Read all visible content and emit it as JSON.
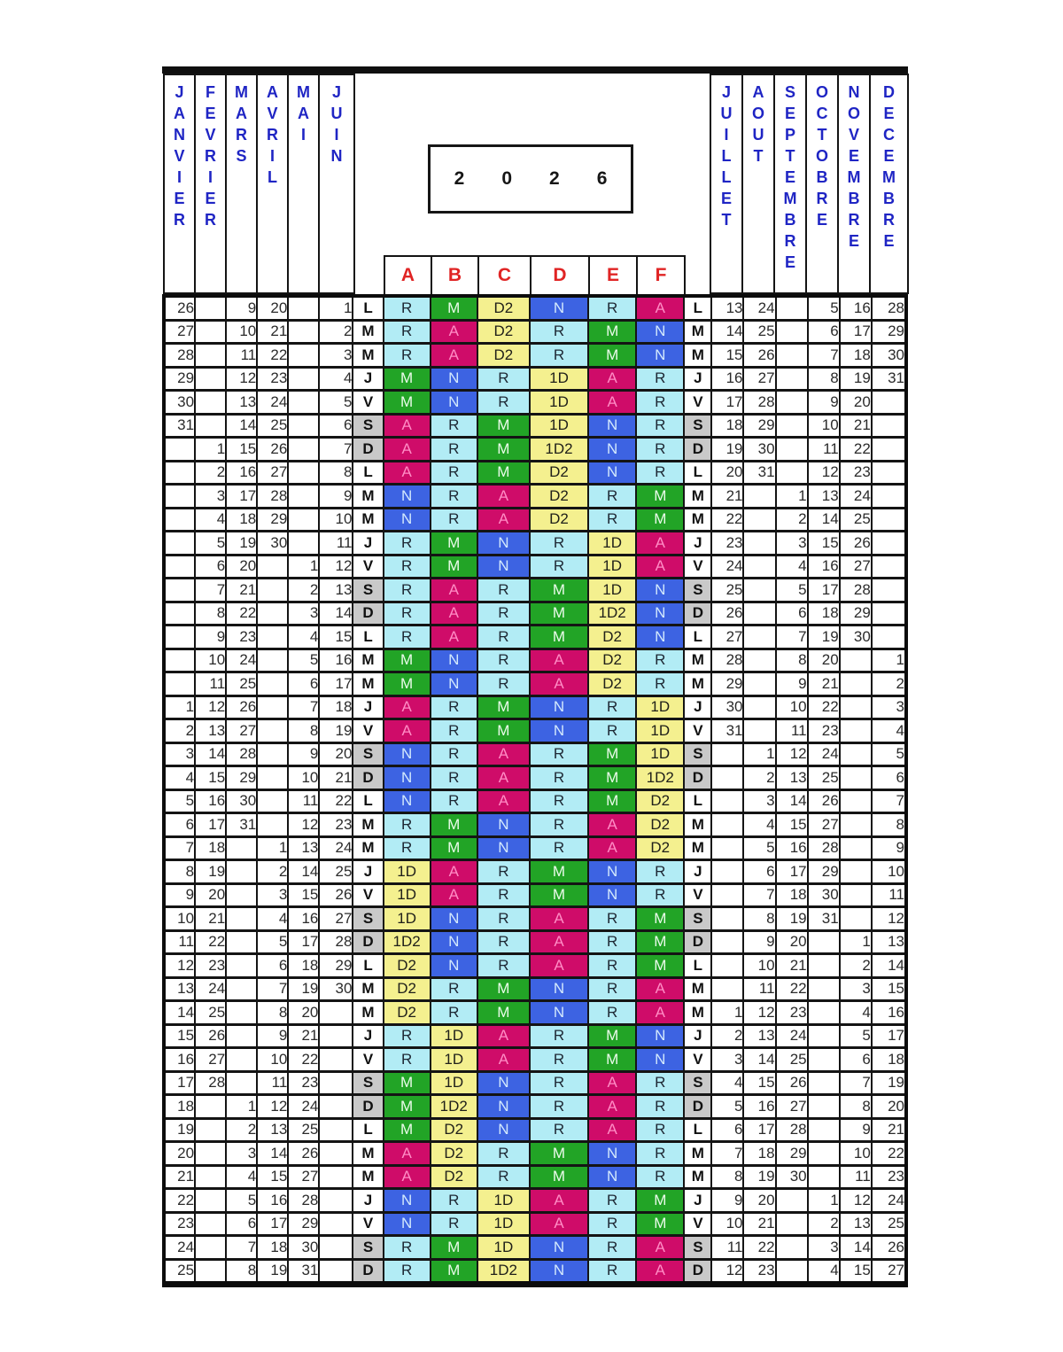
{
  "header": {
    "year": "2026",
    "year_digits": [
      "2",
      "0",
      "2",
      "6"
    ],
    "months_left": [
      "JANVIER",
      "FEVRIER",
      "MARS",
      "AVRIL",
      "MAI",
      "JUIN"
    ],
    "months_right": [
      "JUILLET",
      "AOUT",
      "SEPTEMBRE",
      "OCTOBRE",
      "NOVEMBRE",
      "DECEMBRE"
    ],
    "team_columns": [
      "A",
      "B",
      "C",
      "D",
      "E",
      "F"
    ]
  },
  "colors": {
    "border": "#141414",
    "month_text": "#1f25c4",
    "team_text": "#e02424",
    "year_text": "#161616",
    "number_text": "#2b2b2b",
    "day_text": "#111111",
    "weekend_bg": "#c9c9c9",
    "codes": {
      "R": {
        "bg": "#b2ecf5",
        "text": "#1d2733"
      },
      "M": {
        "bg": "#22a426",
        "text": "#eafbea"
      },
      "A": {
        "bg": "#cf0c69",
        "text": "#ff8cc5"
      },
      "N": {
        "bg": "#3d63e2",
        "text": "#d3e9fd"
      },
      "D2": {
        "bg": "#f4f08f",
        "text": "#20201a"
      },
      "1D": {
        "bg": "#f4f08f",
        "text": "#20201a"
      },
      "1D2": {
        "bg": "#f4f08f",
        "text": "#20201a"
      }
    }
  },
  "grid": {
    "rows": [
      {
        "left": [
          "26",
          "",
          "9",
          "20",
          "",
          "1"
        ],
        "day": "L",
        "shifts": [
          "R",
          "M",
          "D2",
          "N",
          "R",
          "A"
        ],
        "right": [
          "13",
          "24",
          "",
          "5",
          "16",
          "28"
        ]
      },
      {
        "left": [
          "27",
          "",
          "10",
          "21",
          "",
          "2"
        ],
        "day": "M",
        "shifts": [
          "R",
          "A",
          "D2",
          "R",
          "M",
          "N"
        ],
        "right": [
          "14",
          "25",
          "",
          "6",
          "17",
          "29"
        ]
      },
      {
        "left": [
          "28",
          "",
          "11",
          "22",
          "",
          "3"
        ],
        "day": "M",
        "shifts": [
          "R",
          "A",
          "D2",
          "R",
          "M",
          "N"
        ],
        "right": [
          "15",
          "26",
          "",
          "7",
          "18",
          "30"
        ]
      },
      {
        "left": [
          "29",
          "",
          "12",
          "23",
          "",
          "4"
        ],
        "day": "J",
        "shifts": [
          "M",
          "N",
          "R",
          "1D",
          "A",
          "R"
        ],
        "right": [
          "16",
          "27",
          "",
          "8",
          "19",
          "31"
        ]
      },
      {
        "left": [
          "30",
          "",
          "13",
          "24",
          "",
          "5"
        ],
        "day": "V",
        "shifts": [
          "M",
          "N",
          "R",
          "1D",
          "A",
          "R"
        ],
        "right": [
          "17",
          "28",
          "",
          "9",
          "20",
          ""
        ]
      },
      {
        "left": [
          "31",
          "",
          "14",
          "25",
          "",
          "6"
        ],
        "day": "S",
        "shifts": [
          "A",
          "R",
          "M",
          "1D",
          "N",
          "R"
        ],
        "right": [
          "18",
          "29",
          "",
          "10",
          "21",
          ""
        ]
      },
      {
        "left": [
          "",
          "1",
          "15",
          "26",
          "",
          "7"
        ],
        "day": "D",
        "shifts": [
          "A",
          "R",
          "M",
          "1D2",
          "N",
          "R"
        ],
        "right": [
          "19",
          "30",
          "",
          "11",
          "22",
          ""
        ]
      },
      {
        "left": [
          "",
          "2",
          "16",
          "27",
          "",
          "8"
        ],
        "day": "L",
        "shifts": [
          "A",
          "R",
          "M",
          "D2",
          "N",
          "R"
        ],
        "right": [
          "20",
          "31",
          "",
          "12",
          "23",
          ""
        ]
      },
      {
        "left": [
          "",
          "3",
          "17",
          "28",
          "",
          "9"
        ],
        "day": "M",
        "shifts": [
          "N",
          "R",
          "A",
          "D2",
          "R",
          "M"
        ],
        "right": [
          "21",
          "",
          "1",
          "13",
          "24",
          ""
        ]
      },
      {
        "left": [
          "",
          "4",
          "18",
          "29",
          "",
          "10"
        ],
        "day": "M",
        "shifts": [
          "N",
          "R",
          "A",
          "D2",
          "R",
          "M"
        ],
        "right": [
          "22",
          "",
          "2",
          "14",
          "25",
          ""
        ]
      },
      {
        "left": [
          "",
          "5",
          "19",
          "30",
          "",
          "11"
        ],
        "day": "J",
        "shifts": [
          "R",
          "M",
          "N",
          "R",
          "1D",
          "A"
        ],
        "right": [
          "23",
          "",
          "3",
          "15",
          "26",
          ""
        ]
      },
      {
        "left": [
          "",
          "6",
          "20",
          "",
          "1",
          "12"
        ],
        "day": "V",
        "shifts": [
          "R",
          "M",
          "N",
          "R",
          "1D",
          "A"
        ],
        "right": [
          "24",
          "",
          "4",
          "16",
          "27",
          ""
        ]
      },
      {
        "left": [
          "",
          "7",
          "21",
          "",
          "2",
          "13"
        ],
        "day": "S",
        "shifts": [
          "R",
          "A",
          "R",
          "M",
          "1D",
          "N"
        ],
        "right": [
          "25",
          "",
          "5",
          "17",
          "28",
          ""
        ]
      },
      {
        "left": [
          "",
          "8",
          "22",
          "",
          "3",
          "14"
        ],
        "day": "D",
        "shifts": [
          "R",
          "A",
          "R",
          "M",
          "1D2",
          "N"
        ],
        "right": [
          "26",
          "",
          "6",
          "18",
          "29",
          ""
        ]
      },
      {
        "left": [
          "",
          "9",
          "23",
          "",
          "4",
          "15"
        ],
        "day": "L",
        "shifts": [
          "R",
          "A",
          "R",
          "M",
          "D2",
          "N"
        ],
        "right": [
          "27",
          "",
          "7",
          "19",
          "30",
          ""
        ]
      },
      {
        "left": [
          "",
          "10",
          "24",
          "",
          "5",
          "16"
        ],
        "day": "M",
        "shifts": [
          "M",
          "N",
          "R",
          "A",
          "D2",
          "R"
        ],
        "right": [
          "28",
          "",
          "8",
          "20",
          "",
          "1"
        ]
      },
      {
        "left": [
          "",
          "11",
          "25",
          "",
          "6",
          "17"
        ],
        "day": "M",
        "shifts": [
          "M",
          "N",
          "R",
          "A",
          "D2",
          "R"
        ],
        "right": [
          "29",
          "",
          "9",
          "21",
          "",
          "2"
        ]
      },
      {
        "left": [
          "1",
          "12",
          "26",
          "",
          "7",
          "18"
        ],
        "day": "J",
        "shifts": [
          "A",
          "R",
          "M",
          "N",
          "R",
          "1D"
        ],
        "right": [
          "30",
          "",
          "10",
          "22",
          "",
          "3"
        ]
      },
      {
        "left": [
          "2",
          "13",
          "27",
          "",
          "8",
          "19"
        ],
        "day": "V",
        "shifts": [
          "A",
          "R",
          "M",
          "N",
          "R",
          "1D"
        ],
        "right": [
          "31",
          "",
          "11",
          "23",
          "",
          "4"
        ]
      },
      {
        "left": [
          "3",
          "14",
          "28",
          "",
          "9",
          "20"
        ],
        "day": "S",
        "shifts": [
          "N",
          "R",
          "A",
          "R",
          "M",
          "1D"
        ],
        "right": [
          "",
          "1",
          "12",
          "24",
          "",
          "5"
        ]
      },
      {
        "left": [
          "4",
          "15",
          "29",
          "",
          "10",
          "21"
        ],
        "day": "D",
        "shifts": [
          "N",
          "R",
          "A",
          "R",
          "M",
          "1D2"
        ],
        "right": [
          "",
          "2",
          "13",
          "25",
          "",
          "6"
        ]
      },
      {
        "left": [
          "5",
          "16",
          "30",
          "",
          "11",
          "22"
        ],
        "day": "L",
        "shifts": [
          "N",
          "R",
          "A",
          "R",
          "M",
          "D2"
        ],
        "right": [
          "",
          "3",
          "14",
          "26",
          "",
          "7"
        ]
      },
      {
        "left": [
          "6",
          "17",
          "31",
          "",
          "12",
          "23"
        ],
        "day": "M",
        "shifts": [
          "R",
          "M",
          "N",
          "R",
          "A",
          "D2"
        ],
        "right": [
          "",
          "4",
          "15",
          "27",
          "",
          "8"
        ]
      },
      {
        "left": [
          "7",
          "18",
          "",
          "1",
          "13",
          "24"
        ],
        "day": "M",
        "shifts": [
          "R",
          "M",
          "N",
          "R",
          "A",
          "D2"
        ],
        "right": [
          "",
          "5",
          "16",
          "28",
          "",
          "9"
        ]
      },
      {
        "left": [
          "8",
          "19",
          "",
          "2",
          "14",
          "25"
        ],
        "day": "J",
        "shifts": [
          "1D",
          "A",
          "R",
          "M",
          "N",
          "R"
        ],
        "right": [
          "",
          "6",
          "17",
          "29",
          "",
          "10"
        ]
      },
      {
        "left": [
          "9",
          "20",
          "",
          "3",
          "15",
          "26"
        ],
        "day": "V",
        "shifts": [
          "1D",
          "A",
          "R",
          "M",
          "N",
          "R"
        ],
        "right": [
          "",
          "7",
          "18",
          "30",
          "",
          "11"
        ]
      },
      {
        "left": [
          "10",
          "21",
          "",
          "4",
          "16",
          "27"
        ],
        "day": "S",
        "shifts": [
          "1D",
          "N",
          "R",
          "A",
          "R",
          "M"
        ],
        "right": [
          "",
          "8",
          "19",
          "31",
          "",
          "12"
        ]
      },
      {
        "left": [
          "11",
          "22",
          "",
          "5",
          "17",
          "28"
        ],
        "day": "D",
        "shifts": [
          "1D2",
          "N",
          "R",
          "A",
          "R",
          "M"
        ],
        "right": [
          "",
          "9",
          "20",
          "",
          "1",
          "13"
        ]
      },
      {
        "left": [
          "12",
          "23",
          "",
          "6",
          "18",
          "29"
        ],
        "day": "L",
        "shifts": [
          "D2",
          "N",
          "R",
          "A",
          "R",
          "M"
        ],
        "right": [
          "",
          "10",
          "21",
          "",
          "2",
          "14"
        ]
      },
      {
        "left": [
          "13",
          "24",
          "",
          "7",
          "19",
          "30"
        ],
        "day": "M",
        "shifts": [
          "D2",
          "R",
          "M",
          "N",
          "R",
          "A"
        ],
        "right": [
          "",
          "11",
          "22",
          "",
          "3",
          "15"
        ]
      },
      {
        "left": [
          "14",
          "25",
          "",
          "8",
          "20",
          ""
        ],
        "day": "M",
        "shifts": [
          "D2",
          "R",
          "M",
          "N",
          "R",
          "A"
        ],
        "right": [
          "1",
          "12",
          "23",
          "",
          "4",
          "16"
        ]
      },
      {
        "left": [
          "15",
          "26",
          "",
          "9",
          "21",
          ""
        ],
        "day": "J",
        "shifts": [
          "R",
          "1D",
          "A",
          "R",
          "M",
          "N"
        ],
        "right": [
          "2",
          "13",
          "24",
          "",
          "5",
          "17"
        ]
      },
      {
        "left": [
          "16",
          "27",
          "",
          "10",
          "22",
          ""
        ],
        "day": "V",
        "shifts": [
          "R",
          "1D",
          "A",
          "R",
          "M",
          "N"
        ],
        "right": [
          "3",
          "14",
          "25",
          "",
          "6",
          "18"
        ]
      },
      {
        "left": [
          "17",
          "28",
          "",
          "11",
          "23",
          ""
        ],
        "day": "S",
        "shifts": [
          "M",
          "1D",
          "N",
          "R",
          "A",
          "R"
        ],
        "right": [
          "4",
          "15",
          "26",
          "",
          "7",
          "19"
        ]
      },
      {
        "left": [
          "18",
          "",
          "1",
          "12",
          "24",
          ""
        ],
        "day": "D",
        "shifts": [
          "M",
          "1D2",
          "N",
          "R",
          "A",
          "R"
        ],
        "right": [
          "5",
          "16",
          "27",
          "",
          "8",
          "20"
        ]
      },
      {
        "left": [
          "19",
          "",
          "2",
          "13",
          "25",
          ""
        ],
        "day": "L",
        "shifts": [
          "M",
          "D2",
          "N",
          "R",
          "A",
          "R"
        ],
        "right": [
          "6",
          "17",
          "28",
          "",
          "9",
          "21"
        ]
      },
      {
        "left": [
          "20",
          "",
          "3",
          "14",
          "26",
          ""
        ],
        "day": "M",
        "shifts": [
          "A",
          "D2",
          "R",
          "M",
          "N",
          "R"
        ],
        "right": [
          "7",
          "18",
          "29",
          "",
          "10",
          "22"
        ]
      },
      {
        "left": [
          "21",
          "",
          "4",
          "15",
          "27",
          ""
        ],
        "day": "M",
        "shifts": [
          "A",
          "D2",
          "R",
          "M",
          "N",
          "R"
        ],
        "right": [
          "8",
          "19",
          "30",
          "",
          "11",
          "23"
        ]
      },
      {
        "left": [
          "22",
          "",
          "5",
          "16",
          "28",
          ""
        ],
        "day": "J",
        "shifts": [
          "N",
          "R",
          "1D",
          "A",
          "R",
          "M"
        ],
        "right": [
          "9",
          "20",
          "",
          "1",
          "12",
          "24"
        ]
      },
      {
        "left": [
          "23",
          "",
          "6",
          "17",
          "29",
          ""
        ],
        "day": "V",
        "shifts": [
          "N",
          "R",
          "1D",
          "A",
          "R",
          "M"
        ],
        "right": [
          "10",
          "21",
          "",
          "2",
          "13",
          "25"
        ]
      },
      {
        "left": [
          "24",
          "",
          "7",
          "18",
          "30",
          ""
        ],
        "day": "S",
        "shifts": [
          "R",
          "M",
          "1D",
          "N",
          "R",
          "A"
        ],
        "right": [
          "11",
          "22",
          "",
          "3",
          "14",
          "26"
        ]
      },
      {
        "left": [
          "25",
          "",
          "8",
          "19",
          "31",
          ""
        ],
        "day": "D",
        "shifts": [
          "R",
          "M",
          "1D2",
          "N",
          "R",
          "A"
        ],
        "right": [
          "12",
          "23",
          "",
          "4",
          "15",
          "27"
        ]
      }
    ]
  }
}
